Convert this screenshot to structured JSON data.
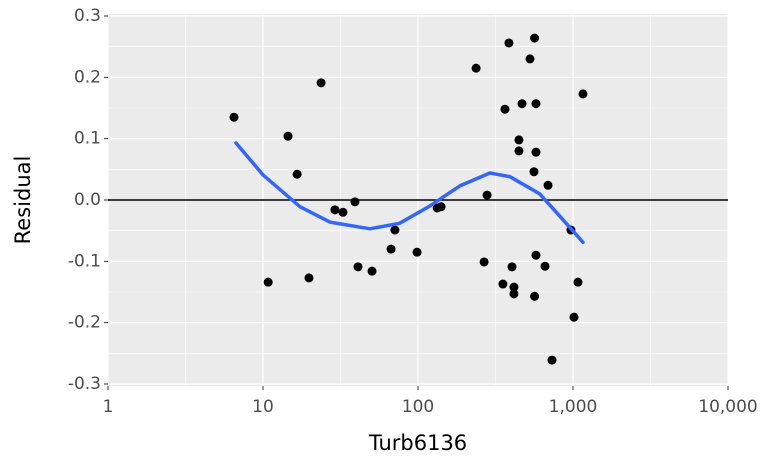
{
  "chart_data": {
    "type": "scatter",
    "x_label": "Turb6136",
    "y_label": "Residual",
    "log_x": true,
    "grid": true,
    "panel_color": "#ebebeb",
    "point_color": "#000000",
    "xlim": [
      1,
      10000
    ],
    "xticks": [
      1,
      10,
      100,
      {
        "value": 1000,
        "label": "1,000"
      },
      {
        "value": 10000,
        "label": "10,000"
      }
    ],
    "ylim": [
      -0.3,
      0.3
    ],
    "yticks": [
      -0.3,
      -0.2,
      -0.1,
      {
        "value": 0,
        "label": "0.0"
      },
      0.1,
      0.2,
      0.3
    ],
    "hline": {
      "value": 0,
      "color": "#000000"
    },
    "x": [
      6.5,
      10.8,
      14.5,
      16.6,
      19.8,
      23.7,
      29.1,
      32.8,
      39.2,
      41,
      50.5,
      67,
      71,
      98.6,
      133,
      141,
      237,
      267,
      279,
      353,
      364,
      386,
      404,
      416,
      416,
      448,
      448,
      469,
      528,
      560,
      565,
      577,
      577,
      577,
      565,
      660,
      690,
      732,
      970,
      1015,
      1077,
      1160
    ],
    "y": [
      0.135,
      -0.134,
      0.104,
      0.042,
      -0.127,
      0.191,
      -0.016,
      -0.02,
      -0.003,
      -0.109,
      -0.116,
      -0.08,
      -0.049,
      -0.085,
      -0.013,
      -0.011,
      0.215,
      -0.101,
      0.008,
      -0.137,
      0.148,
      0.256,
      -0.109,
      -0.142,
      -0.153,
      0.098,
      0.08,
      0.157,
      0.23,
      0.046,
      0.264,
      0.157,
      0.078,
      -0.09,
      -0.157,
      -0.108,
      0.024,
      -0.261,
      -0.049,
      -0.191,
      -0.134,
      0.173
    ],
    "smooth": {
      "color": "#3366ff",
      "x": [
        6.7,
        10,
        17.3,
        27,
        49,
        76,
        119,
        186,
        291,
        392,
        610,
        820,
        1160
      ],
      "y": [
        0.093,
        0.041,
        -0.011,
        -0.036,
        -0.047,
        -0.038,
        -0.01,
        0.023,
        0.044,
        0.038,
        0.01,
        -0.026,
        -0.069
      ]
    }
  }
}
